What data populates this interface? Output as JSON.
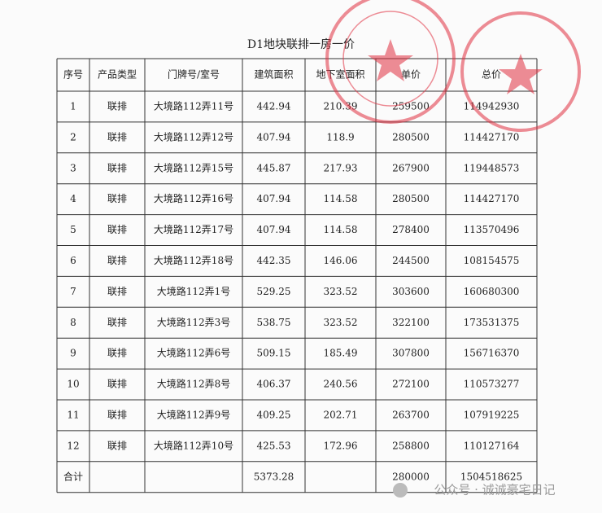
{
  "title": "D1地块联排一房一价",
  "table": {
    "headers": [
      "序号",
      "产品类型",
      "门牌号/室号",
      "建筑面积",
      "地下室面积",
      "单价",
      "总价"
    ],
    "rows": [
      [
        "1",
        "联排",
        "大境路112弄11号",
        "442.94",
        "210.39",
        "259500",
        "114942930"
      ],
      [
        "2",
        "联排",
        "大境路112弄12号",
        "407.94",
        "118.9",
        "280500",
        "114427170"
      ],
      [
        "3",
        "联排",
        "大境路112弄15号",
        "445.87",
        "217.93",
        "267900",
        "119448573"
      ],
      [
        "4",
        "联排",
        "大境路112弄16号",
        "407.94",
        "114.58",
        "280500",
        "114427170"
      ],
      [
        "5",
        "联排",
        "大境路112弄17号",
        "407.94",
        "114.58",
        "278400",
        "113570496"
      ],
      [
        "6",
        "联排",
        "大境路112弄18号",
        "442.35",
        "146.06",
        "244500",
        "108154575"
      ],
      [
        "7",
        "联排",
        "大境路112弄1号",
        "529.25",
        "323.52",
        "303600",
        "160680300"
      ],
      [
        "8",
        "联排",
        "大境路112弄3号",
        "538.75",
        "323.52",
        "322100",
        "173531375"
      ],
      [
        "9",
        "联排",
        "大境路112弄6号",
        "509.15",
        "185.49",
        "307800",
        "156716370"
      ],
      [
        "10",
        "联排",
        "大境路112弄8号",
        "406.37",
        "240.56",
        "272100",
        "110573277"
      ],
      [
        "11",
        "联排",
        "大境路112弄9号",
        "409.25",
        "202.71",
        "263700",
        "107919225"
      ],
      [
        "12",
        "联排",
        "大境路112弄10号",
        "425.53",
        "172.96",
        "258800",
        "110127164"
      ]
    ],
    "total": {
      "label": "合计",
      "area": "5373.28",
      "unit_price": "280000",
      "total_price": "1504518625"
    }
  },
  "watermark": "公众号 · 诚诚豪宅日记"
}
